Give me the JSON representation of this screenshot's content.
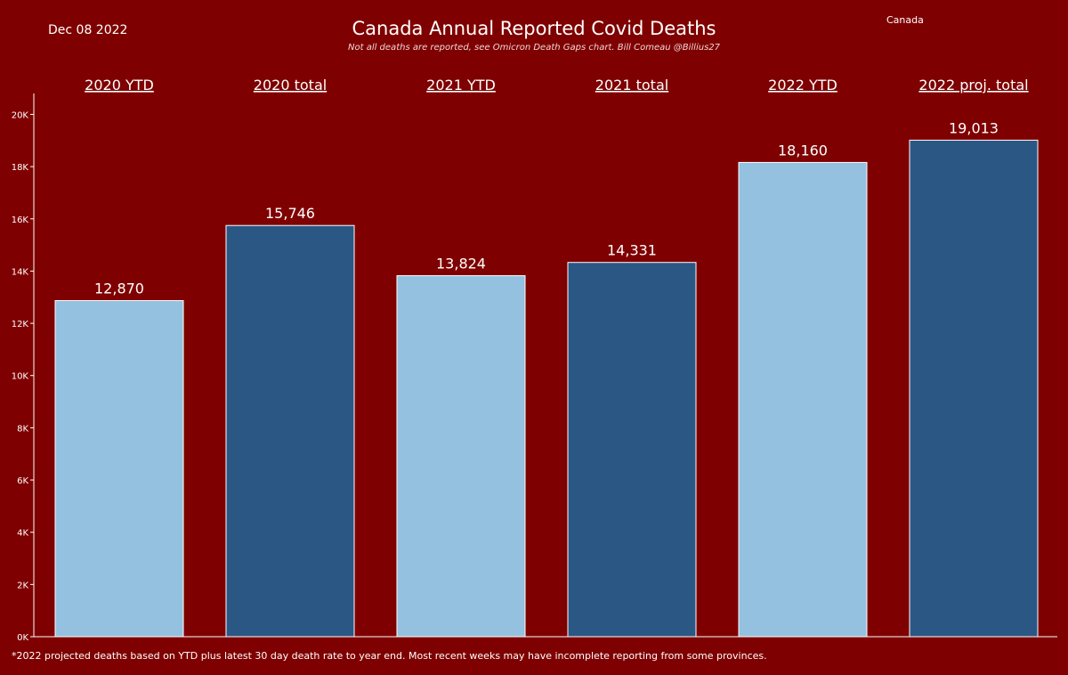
{
  "header": {
    "date": "Dec 08 2022",
    "title": "Canada  Annual Reported Covid Deaths",
    "subtitle": "Not all deaths are reported, see Omicron Death Gaps chart. Bill Comeau @Billius27",
    "filter_label": "Canada"
  },
  "footnote": "*2022 projected deaths based on YTD plus latest 30 day death rate to year end. Most recent weeks may have incomplete reporting from some provinces.",
  "colors": {
    "background": "#7f0000",
    "ytd_bar": "#93c1df",
    "total_bar": "#2b5784",
    "text": "#ffffff"
  },
  "chart_data": {
    "type": "bar",
    "title": "Canada  Annual Reported Covid Deaths",
    "categories": [
      "2020 YTD",
      "2020 total",
      "2021 YTD",
      "2021 total",
      "2022 YTD",
      "2022 proj. total"
    ],
    "values": [
      12870,
      15746,
      13824,
      14331,
      18160,
      19013
    ],
    "value_labels": [
      "12,870",
      "15,746",
      "13,824",
      "14,331",
      "18,160",
      "19,013"
    ],
    "bar_kinds": [
      "ytd",
      "total",
      "ytd",
      "total",
      "ytd",
      "total"
    ],
    "ylim": [
      0,
      20800
    ],
    "yticks": [
      0,
      2000,
      4000,
      6000,
      8000,
      10000,
      12000,
      14000,
      16000,
      18000,
      20000
    ],
    "ytick_labels": [
      "0K",
      "2K",
      "4K",
      "6K",
      "8K",
      "10K",
      "12K",
      "14K",
      "16K",
      "18K",
      "20K"
    ],
    "category_label_position": "top",
    "xlabel": "",
    "ylabel": "",
    "grid": false
  }
}
